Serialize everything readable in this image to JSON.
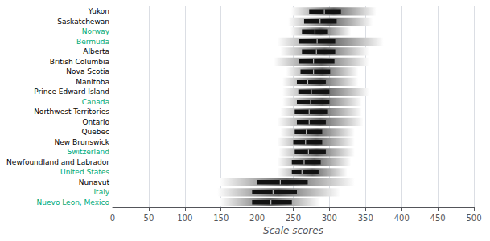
{
  "chart_data": {
    "type": "range_bar",
    "orientation": "horizontal",
    "xlabel": "Scale scores",
    "categories": [
      "Yukon",
      "Saskatchewan",
      "Norway",
      "Bermuda",
      "Alberta",
      "British Columbia",
      "Nova Scotia",
      "Manitoba",
      "Prince Edward Island",
      "Canada",
      "Northwest Territories",
      "Ontario",
      "Quebec",
      "New Brunswick",
      "Switzerland",
      "Newfoundland and Labrador",
      "United States",
      "Nunavut",
      "Italy",
      "Nuevo Leon, Mexico"
    ],
    "label_colors": [
      "black",
      "black",
      "#00aa77",
      "#00aa77",
      "black",
      "black",
      "black",
      "black",
      "black",
      "#00aa77",
      "black",
      "black",
      "black",
      "black",
      "#00aa77",
      "black",
      "#00aa77",
      "black",
      "#00aa77",
      "#00aa77"
    ],
    "full_left": [
      247,
      243,
      246,
      228,
      232,
      223,
      240,
      235,
      235,
      235,
      232,
      228,
      232,
      228,
      230,
      228,
      228,
      148,
      145,
      148
    ],
    "full_right": [
      365,
      360,
      330,
      375,
      355,
      355,
      340,
      340,
      355,
      345,
      345,
      347,
      335,
      335,
      335,
      330,
      325,
      335,
      315,
      287
    ],
    "ci_left": [
      272,
      265,
      262,
      258,
      262,
      258,
      260,
      255,
      257,
      255,
      252,
      255,
      252,
      250,
      252,
      248,
      248,
      200,
      193,
      193
    ],
    "ci_right": [
      316,
      310,
      298,
      308,
      308,
      307,
      301,
      295,
      300,
      300,
      298,
      295,
      290,
      290,
      295,
      288,
      285,
      270,
      255,
      248
    ],
    "values": [
      293,
      287,
      280,
      283,
      282,
      278,
      278,
      270,
      275,
      274,
      272,
      272,
      268,
      267,
      271,
      265,
      262,
      232,
      222,
      219
    ],
    "color": "#111111",
    "xlim": [
      0,
      500
    ],
    "xticks": [
      0,
      50,
      100,
      150,
      200,
      250,
      300,
      350,
      400,
      450,
      500
    ],
    "grid": true
  }
}
